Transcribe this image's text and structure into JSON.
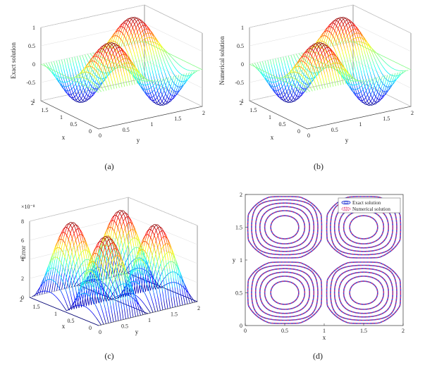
{
  "chart_data": [
    {
      "type": "surface",
      "panel": "(a)",
      "function": "sin(pi*x)*sin(pi*y)",
      "xlabel": "x",
      "ylabel": "y",
      "zlabel": "Exact solution",
      "xlim": [
        0,
        2
      ],
      "ylim": [
        0,
        2
      ],
      "zlim": [
        -1,
        1
      ],
      "xticks": [
        "0",
        "0.5",
        "1",
        "1.5",
        "2"
      ],
      "yticks": [
        "0",
        "0.5",
        "1",
        "1.5",
        "2"
      ],
      "zticks": [
        "-1",
        "-0.5",
        "0",
        "0.5",
        "1"
      ],
      "zmin": -1,
      "zmax": 1
    },
    {
      "type": "surface",
      "panel": "(b)",
      "function": "sin(pi*x)*sin(pi*y)",
      "xlabel": "x",
      "ylabel": "y",
      "zlabel": "Numerical solution",
      "xlim": [
        0,
        2
      ],
      "ylim": [
        0,
        2
      ],
      "zlim": [
        -1,
        1
      ],
      "xticks": [
        "0",
        "0.5",
        "1",
        "1.5",
        "2"
      ],
      "yticks": [
        "0",
        "0.5",
        "1",
        "1.5",
        "2"
      ],
      "zticks": [
        "-1",
        "-0.5",
        "0",
        "0.5",
        "1"
      ],
      "zmin": -1,
      "zmax": 1
    },
    {
      "type": "surface",
      "panel": "(c)",
      "function": "8e-8*|sin(pi*x)*sin(pi*y)|",
      "xlabel": "x",
      "ylabel": "y",
      "zlabel": "Error",
      "xlim": [
        0,
        2
      ],
      "ylim": [
        0,
        2
      ],
      "zlim": [
        0,
        8
      ],
      "zscale_label": "×10⁻⁸",
      "xticks": [
        "0",
        "0.5",
        "1",
        "1.5",
        "2"
      ],
      "yticks": [
        "0",
        "0.5",
        "1",
        "1.5",
        "2"
      ],
      "zticks": [
        "0",
        "2",
        "4",
        "6",
        "8"
      ],
      "zmin": 0,
      "zmax": 8
    },
    {
      "type": "contour",
      "panel": "(d)",
      "function": "sin(pi*x)*sin(pi*y)",
      "xlabel": "x",
      "ylabel": "y",
      "xlim": [
        0,
        2
      ],
      "ylim": [
        0,
        2
      ],
      "xticks": [
        "0",
        "0.5",
        "1",
        "1.5",
        "2"
      ],
      "yticks": [
        "0",
        "0.5",
        "1",
        "1.5",
        "2"
      ],
      "levels": [
        0.1,
        0.25,
        0.4,
        0.55,
        0.7,
        0.85
      ],
      "legend": [
        "Exact solution",
        "Numerical solution"
      ],
      "legend_position": "top-right",
      "series_colors": [
        "#3a4bd8",
        "#e0306a"
      ]
    }
  ]
}
